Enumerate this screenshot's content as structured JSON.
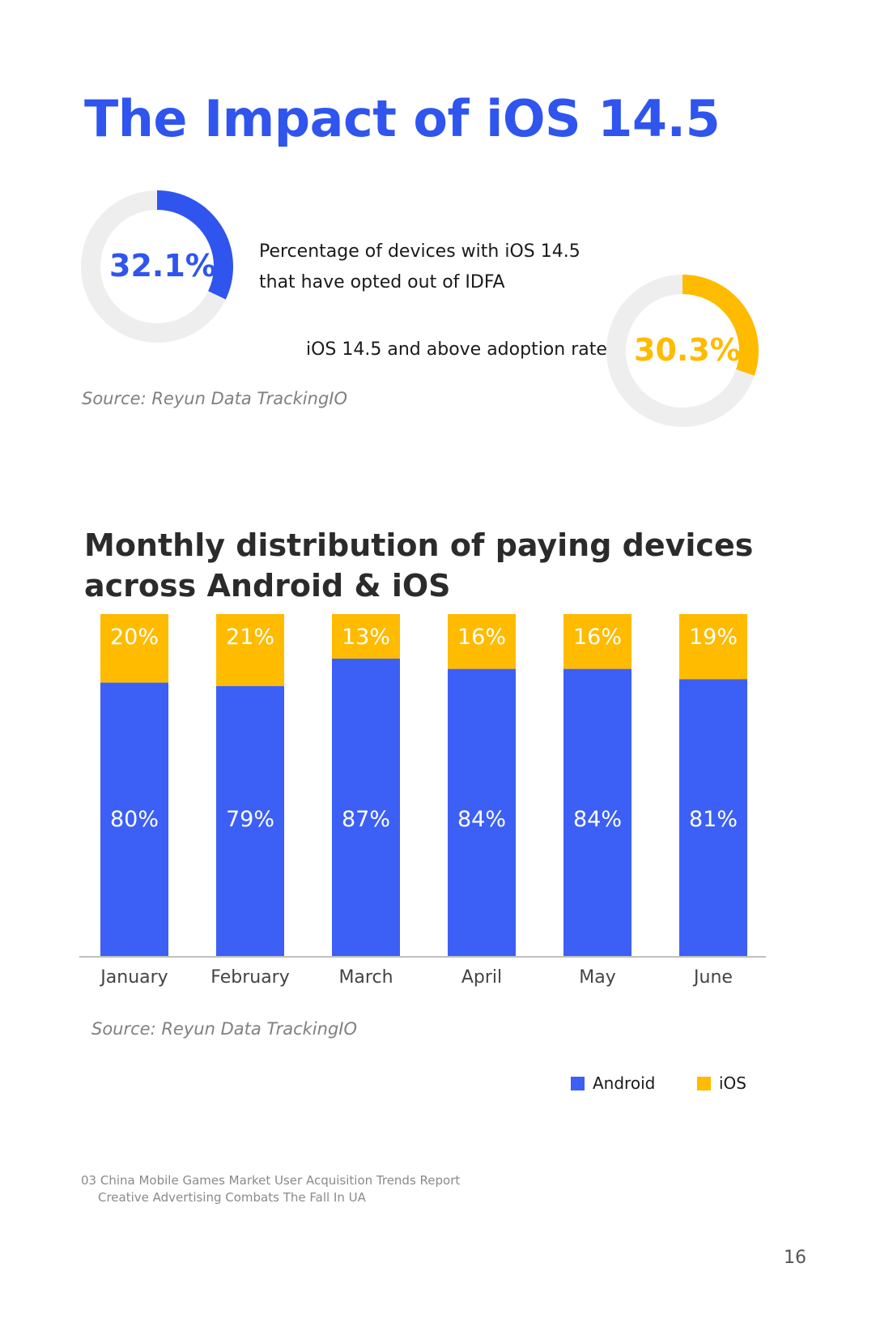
{
  "page": {
    "title": "The Impact of iOS 14.5"
  },
  "stats": [
    {
      "value_label": "32.1%",
      "value": 32.1,
      "description_lines": [
        "Percentage of devices with iOS 14.5",
        "that have opted out of IDFA"
      ],
      "color": "#2f55ee"
    },
    {
      "value_label": "30.3%",
      "value": 30.3,
      "description_lines": [
        "iOS 14.5 and above adoption rate"
      ],
      "color": "#ffbb00"
    }
  ],
  "source_top": "Source: Reyun Data TrackingIO",
  "source_bottom": "Source: Reyun Data TrackingIO",
  "colors": {
    "track": "#eeeeee",
    "android": "#3c5ff5",
    "ios": "#ffbb00"
  },
  "chart_data": {
    "type": "bar",
    "stacked": true,
    "title": "Monthly distribution of paying devices across Android & iOS",
    "categories": [
      "January",
      "February",
      "March",
      "April",
      "May",
      "June"
    ],
    "series": [
      {
        "name": "Android",
        "values": [
          80,
          79,
          87,
          84,
          84,
          81
        ],
        "labels": [
          "80%",
          "79%",
          "87%",
          "84%",
          "84%",
          "81%"
        ]
      },
      {
        "name": "iOS",
        "values": [
          20,
          21,
          13,
          16,
          16,
          19
        ],
        "labels": [
          "20%",
          "21%",
          "13%",
          "16%",
          "16%",
          "19%"
        ]
      }
    ],
    "ylim": [
      0,
      100
    ],
    "grid": false,
    "legend": "bottom-right"
  },
  "footer": {
    "line1": "03 China Mobile Games Market User Acquisition Trends Report",
    "line2": "Creative Advertising Combats The Fall In UA",
    "page_number": "16"
  }
}
